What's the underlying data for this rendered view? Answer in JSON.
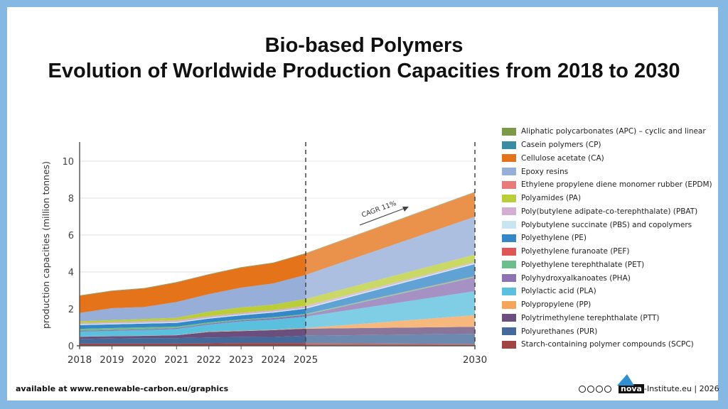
{
  "title_line1": "Bio-based Polymers",
  "title_line2": "Evolution of Worldwide Production Capacities from 2018 to 2030",
  "footer_left": "available at www.renewable-carbon.eu/graphics",
  "footer_right": {
    "brand": "nova",
    "suffix": "-Institute.eu | 2026",
    "license_icons": [
      "cc-icon",
      "by-icon",
      "nc-icon",
      "nd-icon"
    ]
  },
  "chart_data": {
    "type": "area",
    "stacked": true,
    "ylabel": "production capacities (million tonnes)",
    "ylim": [
      0,
      11
    ],
    "yticks": [
      "0",
      "2",
      "4",
      "6",
      "8",
      "10"
    ],
    "x": [
      2018,
      2019,
      2020,
      2021,
      2022,
      2023,
      2024,
      2025,
      2030
    ],
    "xticks": [
      "2018",
      "2019",
      "2020",
      "2021",
      "2022",
      "2023",
      "2024",
      "2025",
      "2030"
    ],
    "grid": true,
    "forecast_from": 2025,
    "annotation": "CAGR 11%",
    "legend_position": "right",
    "series": [
      {
        "name": "Aliphatic polycarbonates (APC) – cyclic and linear",
        "color": "#7a9a48",
        "values": [
          0.02,
          0.02,
          0.02,
          0.02,
          0.02,
          0.02,
          0.02,
          0.02,
          0.02
        ]
      },
      {
        "name": "Casein polymers (CP)",
        "color": "#3a8ca4",
        "values": [
          0.01,
          0.01,
          0.01,
          0.01,
          0.01,
          0.01,
          0.01,
          0.01,
          0.01
        ]
      },
      {
        "name": "Cellulose acetate (CA)",
        "color": "#e5731a",
        "values": [
          0.92,
          0.92,
          1.0,
          1.05,
          1.05,
          1.08,
          1.1,
          1.15,
          1.32
        ]
      },
      {
        "name": "Epoxy resins",
        "color": "#97aed9",
        "values": [
          0.45,
          0.65,
          0.65,
          0.85,
          0.95,
          1.07,
          1.15,
          1.3,
          2.05
        ]
      },
      {
        "name": "Ethylene propylene diene monomer rubber (EPDM)",
        "color": "#e87a7a",
        "values": [
          0,
          0,
          0,
          0,
          0,
          0,
          0,
          0,
          0
        ]
      },
      {
        "name": "Polyamides (PA)",
        "color": "#bccd3a",
        "values": [
          0.1,
          0.11,
          0.12,
          0.14,
          0.25,
          0.3,
          0.3,
          0.38,
          0.4
        ]
      },
      {
        "name": "Poly(butylene adipate-co-terephthalate) (PBAT)",
        "color": "#d3aed3",
        "values": [
          0.06,
          0.07,
          0.08,
          0.09,
          0.08,
          0.08,
          0.08,
          0.1,
          0.06
        ]
      },
      {
        "name": "Polybutylene succinate (PBS) and copolymers",
        "color": "#c8e6f0",
        "values": [
          0.05,
          0.05,
          0.05,
          0.05,
          0.05,
          0.05,
          0.05,
          0.05,
          0.05
        ]
      },
      {
        "name": "Polyethylene (PE)",
        "color": "#3488c8",
        "values": [
          0.2,
          0.2,
          0.2,
          0.2,
          0.2,
          0.22,
          0.25,
          0.28,
          0.65
        ]
      },
      {
        "name": "Polyethylene furanoate (PEF)",
        "color": "#e05555",
        "values": [
          0,
          0,
          0,
          0,
          0,
          0,
          0,
          0,
          0.02
        ]
      },
      {
        "name": "Polyethylene terephthalate (PET)",
        "color": "#6cbf8c",
        "values": [
          0.1,
          0.1,
          0.1,
          0.08,
          0.07,
          0.05,
          0.05,
          0.05,
          0.05
        ]
      },
      {
        "name": "Polyhydroxyalkanoates (PHA)",
        "color": "#8e72b4",
        "values": [
          0.05,
          0.05,
          0.05,
          0.05,
          0.05,
          0.06,
          0.08,
          0.1,
          0.75
        ]
      },
      {
        "name": "Polylactic acid (PLA)",
        "color": "#5bc0de",
        "values": [
          0.27,
          0.28,
          0.3,
          0.33,
          0.38,
          0.5,
          0.55,
          0.62,
          1.3
        ]
      },
      {
        "name": "Polypropylene (PP)",
        "color": "#f5a45a",
        "values": [
          0.01,
          0.01,
          0.01,
          0.01,
          0.02,
          0.02,
          0.02,
          0.03,
          0.63
        ]
      },
      {
        "name": "Polytrimethylene terephthalate (PTT)",
        "color": "#6a4f7e",
        "values": [
          0.12,
          0.12,
          0.12,
          0.15,
          0.3,
          0.33,
          0.37,
          0.38,
          0.38
        ]
      },
      {
        "name": "Polyurethanes (PUR)",
        "color": "#436a9a",
        "values": [
          0.25,
          0.28,
          0.3,
          0.3,
          0.32,
          0.32,
          0.33,
          0.4,
          0.55
        ]
      },
      {
        "name": "Starch-containing polymer compounds (SCPC)",
        "color": "#a04444",
        "values": [
          0.12,
          0.12,
          0.12,
          0.12,
          0.13,
          0.15,
          0.15,
          0.15,
          0.1
        ]
      }
    ]
  }
}
